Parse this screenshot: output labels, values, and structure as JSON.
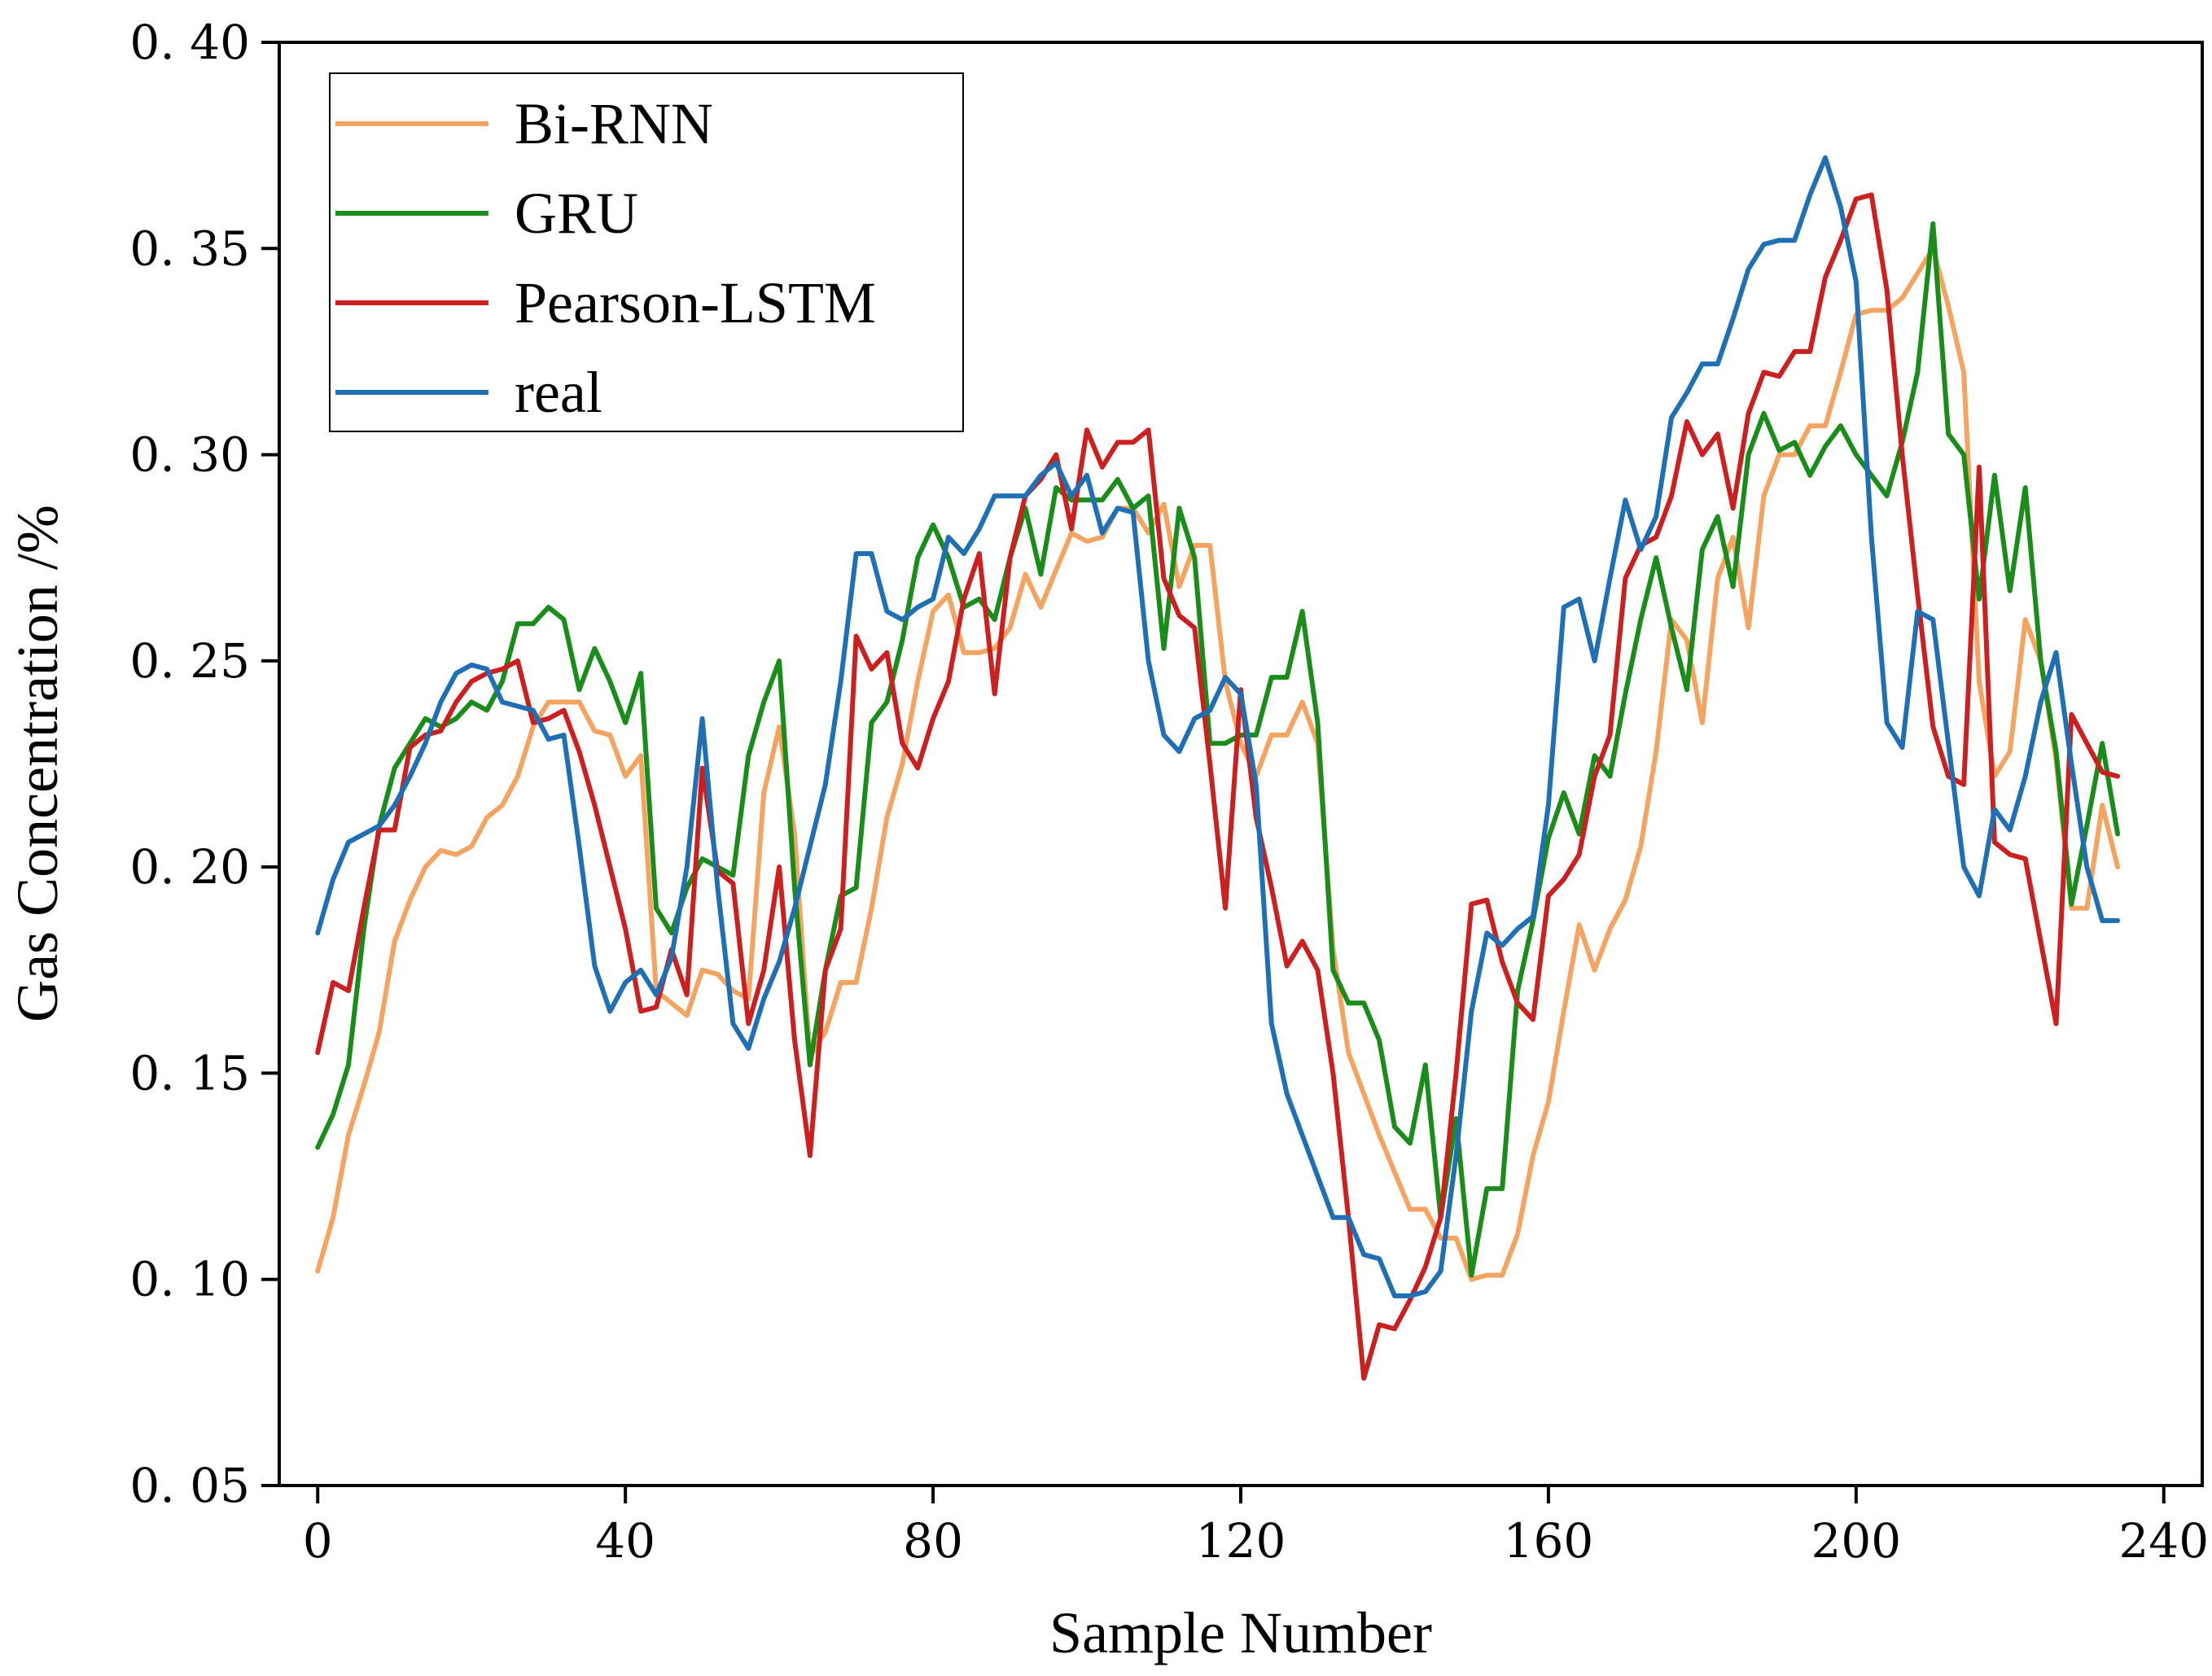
{
  "chart_data": {
    "type": "line",
    "title": "",
    "xlabel": "Sample Number",
    "ylabel": "Gas Concentration /%",
    "xlim": [
      -5,
      245
    ],
    "ylim": [
      0.05,
      0.4
    ],
    "xticks": [
      0,
      40,
      80,
      120,
      160,
      200,
      240
    ],
    "xtick_labels": [
      "0",
      "40",
      "80",
      "120",
      "160",
      "200",
      "240"
    ],
    "yticks": [
      0.05,
      0.1,
      0.15,
      0.2,
      0.25,
      0.3,
      0.35,
      0.4
    ],
    "ytick_labels": [
      "0. 05",
      "0. 10",
      "0. 15",
      "0. 20",
      "0. 25",
      "0. 30",
      "0. 35",
      "0. 40"
    ],
    "grid": false,
    "legend_position": "top-left",
    "series": [
      {
        "name": "Bi-RNN",
        "color": "#F4A460",
        "x": [
          0,
          2,
          4,
          6,
          8,
          10,
          12,
          14,
          16,
          18,
          20,
          22,
          24,
          26,
          28,
          30,
          32,
          34,
          36,
          38,
          40,
          42,
          44,
          46,
          48,
          50,
          52,
          54,
          56,
          58,
          60,
          62,
          64,
          66,
          68,
          70,
          72,
          74,
          76,
          78,
          80,
          82,
          84,
          86,
          88,
          90,
          92,
          94,
          96,
          98,
          100,
          102,
          104,
          106,
          108,
          110,
          112,
          114,
          116,
          118,
          120,
          122,
          124,
          126,
          128,
          130,
          132,
          134,
          136,
          138,
          140,
          142,
          144,
          146,
          148,
          150,
          152,
          154,
          156,
          158,
          160,
          162,
          164,
          166,
          168,
          170,
          172,
          174,
          176,
          178,
          180,
          182,
          184,
          186,
          188,
          190,
          192,
          194,
          196,
          198,
          200,
          202,
          204,
          206,
          208,
          210,
          212,
          214,
          216,
          218,
          220,
          222,
          224,
          226,
          228,
          230,
          232,
          234
        ],
        "y": [
          0.102,
          0.115,
          0.135,
          0.147,
          0.16,
          0.182,
          0.192,
          0.2,
          0.204,
          0.203,
          0.205,
          0.212,
          0.215,
          0.222,
          0.234,
          0.24,
          0.24,
          0.24,
          0.233,
          0.232,
          0.222,
          0.227,
          0.17,
          0.167,
          0.164,
          0.175,
          0.174,
          0.17,
          0.168,
          0.218,
          0.234,
          0.208,
          0.154,
          0.16,
          0.172,
          0.172,
          0.19,
          0.212,
          0.225,
          0.245,
          0.262,
          0.266,
          0.252,
          0.252,
          0.253,
          0.258,
          0.271,
          0.263,
          0.272,
          0.281,
          0.279,
          0.28,
          0.287,
          0.287,
          0.281,
          0.288,
          0.268,
          0.278,
          0.278,
          0.245,
          0.23,
          0.222,
          0.232,
          0.232,
          0.24,
          0.23,
          0.18,
          0.155,
          0.145,
          0.135,
          0.126,
          0.117,
          0.117,
          0.11,
          0.11,
          0.1,
          0.101,
          0.101,
          0.111,
          0.13,
          0.143,
          0.165,
          0.186,
          0.175,
          0.185,
          0.192,
          0.205,
          0.228,
          0.26,
          0.255,
          0.235,
          0.27,
          0.28,
          0.258,
          0.29,
          0.3,
          0.3,
          0.307,
          0.307,
          0.32,
          0.334,
          0.335,
          0.335,
          0.338,
          0.344,
          0.35,
          0.336,
          0.32,
          0.245,
          0.222,
          0.228,
          0.26,
          0.25,
          0.226,
          0.19,
          0.19,
          0.215,
          0.2
        ]
      },
      {
        "name": "GRU",
        "color": "#1A8C1A",
        "x": [
          0,
          2,
          4,
          6,
          8,
          10,
          12,
          14,
          16,
          18,
          20,
          22,
          24,
          26,
          28,
          30,
          32,
          34,
          36,
          38,
          40,
          42,
          44,
          46,
          48,
          50,
          52,
          54,
          56,
          58,
          60,
          62,
          64,
          66,
          68,
          70,
          72,
          74,
          76,
          78,
          80,
          82,
          84,
          86,
          88,
          90,
          92,
          94,
          96,
          98,
          100,
          102,
          104,
          106,
          108,
          110,
          112,
          114,
          116,
          118,
          120,
          122,
          124,
          126,
          128,
          130,
          132,
          134,
          136,
          138,
          140,
          142,
          144,
          146,
          148,
          150,
          152,
          154,
          156,
          158,
          160,
          162,
          164,
          166,
          168,
          170,
          172,
          174,
          176,
          178,
          180,
          182,
          184,
          186,
          188,
          190,
          192,
          194,
          196,
          198,
          200,
          202,
          204,
          206,
          208,
          210,
          212,
          214,
          216,
          218,
          220,
          222,
          224,
          226,
          228,
          230,
          232,
          234
        ],
        "y": [
          0.132,
          0.14,
          0.152,
          0.185,
          0.21,
          0.224,
          0.23,
          0.236,
          0.234,
          0.236,
          0.24,
          0.238,
          0.245,
          0.259,
          0.259,
          0.263,
          0.26,
          0.243,
          0.253,
          0.245,
          0.235,
          0.247,
          0.19,
          0.184,
          0.195,
          0.202,
          0.2,
          0.198,
          0.227,
          0.24,
          0.25,
          0.195,
          0.152,
          0.175,
          0.193,
          0.195,
          0.235,
          0.24,
          0.255,
          0.275,
          0.283,
          0.275,
          0.263,
          0.265,
          0.26,
          0.275,
          0.287,
          0.271,
          0.292,
          0.289,
          0.289,
          0.289,
          0.294,
          0.287,
          0.29,
          0.253,
          0.287,
          0.275,
          0.23,
          0.23,
          0.232,
          0.232,
          0.246,
          0.246,
          0.262,
          0.235,
          0.175,
          0.167,
          0.167,
          0.158,
          0.137,
          0.133,
          0.152,
          0.115,
          0.139,
          0.101,
          0.122,
          0.122,
          0.17,
          0.187,
          0.207,
          0.218,
          0.208,
          0.227,
          0.222,
          0.242,
          0.26,
          0.275,
          0.258,
          0.243,
          0.277,
          0.285,
          0.268,
          0.3,
          0.31,
          0.301,
          0.303,
          0.295,
          0.302,
          0.307,
          0.3,
          0.295,
          0.29,
          0.303,
          0.32,
          0.356,
          0.305,
          0.3,
          0.265,
          0.295,
          0.267,
          0.292,
          0.25,
          0.228,
          0.191,
          0.21,
          0.23,
          0.208
        ]
      },
      {
        "name": "Pearson-LSTM",
        "color": "#CC1F1F",
        "x": [
          0,
          2,
          4,
          6,
          8,
          10,
          12,
          14,
          16,
          18,
          20,
          22,
          24,
          26,
          28,
          30,
          32,
          34,
          36,
          38,
          40,
          42,
          44,
          46,
          48,
          50,
          52,
          54,
          56,
          58,
          60,
          62,
          64,
          66,
          68,
          70,
          72,
          74,
          76,
          78,
          80,
          82,
          84,
          86,
          88,
          90,
          92,
          94,
          96,
          98,
          100,
          102,
          104,
          106,
          108,
          110,
          112,
          114,
          116,
          118,
          120,
          122,
          124,
          126,
          128,
          130,
          132,
          134,
          136,
          138,
          140,
          142,
          144,
          146,
          148,
          150,
          152,
          154,
          156,
          158,
          160,
          162,
          164,
          166,
          168,
          170,
          172,
          174,
          176,
          178,
          180,
          182,
          184,
          186,
          188,
          190,
          192,
          194,
          196,
          198,
          200,
          202,
          204,
          206,
          208,
          210,
          212,
          214,
          216,
          218,
          220,
          222,
          224,
          226,
          228,
          230,
          232,
          234
        ],
        "y": [
          0.155,
          0.172,
          0.17,
          0.19,
          0.209,
          0.209,
          0.229,
          0.232,
          0.233,
          0.24,
          0.245,
          0.247,
          0.248,
          0.25,
          0.235,
          0.236,
          0.238,
          0.228,
          0.215,
          0.2,
          0.185,
          0.165,
          0.166,
          0.18,
          0.169,
          0.224,
          0.199,
          0.196,
          0.162,
          0.175,
          0.2,
          0.158,
          0.13,
          0.175,
          0.185,
          0.256,
          0.248,
          0.252,
          0.23,
          0.224,
          0.236,
          0.245,
          0.265,
          0.276,
          0.242,
          0.275,
          0.29,
          0.294,
          0.3,
          0.282,
          0.306,
          0.297,
          0.303,
          0.303,
          0.306,
          0.27,
          0.261,
          0.258,
          0.225,
          0.19,
          0.243,
          0.212,
          0.195,
          0.176,
          0.182,
          0.175,
          0.15,
          0.115,
          0.076,
          0.089,
          0.088,
          0.095,
          0.103,
          0.115,
          0.15,
          0.191,
          0.192,
          0.177,
          0.167,
          0.163,
          0.193,
          0.197,
          0.203,
          0.222,
          0.232,
          0.27,
          0.278,
          0.28,
          0.29,
          0.308,
          0.3,
          0.305,
          0.287,
          0.31,
          0.32,
          0.319,
          0.325,
          0.325,
          0.343,
          0.352,
          0.362,
          0.363,
          0.34,
          0.3,
          0.266,
          0.234,
          0.222,
          0.22,
          0.297,
          0.206,
          0.203,
          0.202,
          0.182,
          0.162,
          0.237,
          0.23,
          0.223,
          0.222
        ]
      },
      {
        "name": "real",
        "color": "#1F6FB4",
        "x": [
          0,
          2,
          4,
          6,
          8,
          10,
          12,
          14,
          16,
          18,
          20,
          22,
          24,
          26,
          28,
          30,
          32,
          34,
          36,
          38,
          40,
          42,
          44,
          46,
          48,
          50,
          52,
          54,
          56,
          58,
          60,
          62,
          64,
          66,
          68,
          70,
          72,
          74,
          76,
          78,
          80,
          82,
          84,
          86,
          88,
          90,
          92,
          94,
          96,
          98,
          100,
          102,
          104,
          106,
          108,
          110,
          112,
          114,
          116,
          118,
          120,
          122,
          124,
          126,
          128,
          130,
          132,
          134,
          136,
          138,
          140,
          142,
          144,
          146,
          148,
          150,
          152,
          154,
          156,
          158,
          160,
          162,
          164,
          166,
          168,
          170,
          172,
          174,
          176,
          178,
          180,
          182,
          184,
          186,
          188,
          190,
          192,
          194,
          196,
          198,
          200,
          202,
          204,
          206,
          208,
          210,
          212,
          214,
          216,
          218,
          220,
          222,
          224,
          226,
          228,
          230,
          232,
          234
        ],
        "y": [
          0.184,
          0.197,
          0.206,
          0.208,
          0.21,
          0.215,
          0.222,
          0.23,
          0.24,
          0.247,
          0.249,
          0.248,
          0.24,
          0.239,
          0.238,
          0.231,
          0.232,
          0.205,
          0.176,
          0.165,
          0.172,
          0.175,
          0.169,
          0.178,
          0.2,
          0.236,
          0.195,
          0.162,
          0.156,
          0.168,
          0.177,
          0.19,
          0.205,
          0.22,
          0.245,
          0.276,
          0.276,
          0.262,
          0.26,
          0.263,
          0.265,
          0.28,
          0.276,
          0.282,
          0.29,
          0.29,
          0.29,
          0.295,
          0.298,
          0.29,
          0.295,
          0.281,
          0.287,
          0.286,
          0.25,
          0.232,
          0.228,
          0.236,
          0.238,
          0.246,
          0.242,
          0.22,
          0.162,
          0.145,
          0.135,
          0.125,
          0.115,
          0.115,
          0.106,
          0.105,
          0.096,
          0.096,
          0.097,
          0.102,
          0.13,
          0.165,
          0.184,
          0.181,
          0.185,
          0.188,
          0.215,
          0.263,
          0.265,
          0.25,
          0.27,
          0.289,
          0.277,
          0.285,
          0.309,
          0.315,
          0.322,
          0.322,
          0.333,
          0.345,
          0.351,
          0.352,
          0.352,
          0.363,
          0.372,
          0.36,
          0.342,
          0.28,
          0.235,
          0.229,
          0.262,
          0.26,
          0.23,
          0.2,
          0.193,
          0.214,
          0.209,
          0.222,
          0.24,
          0.252,
          0.225,
          0.2,
          0.187,
          0.187
        ]
      }
    ]
  }
}
